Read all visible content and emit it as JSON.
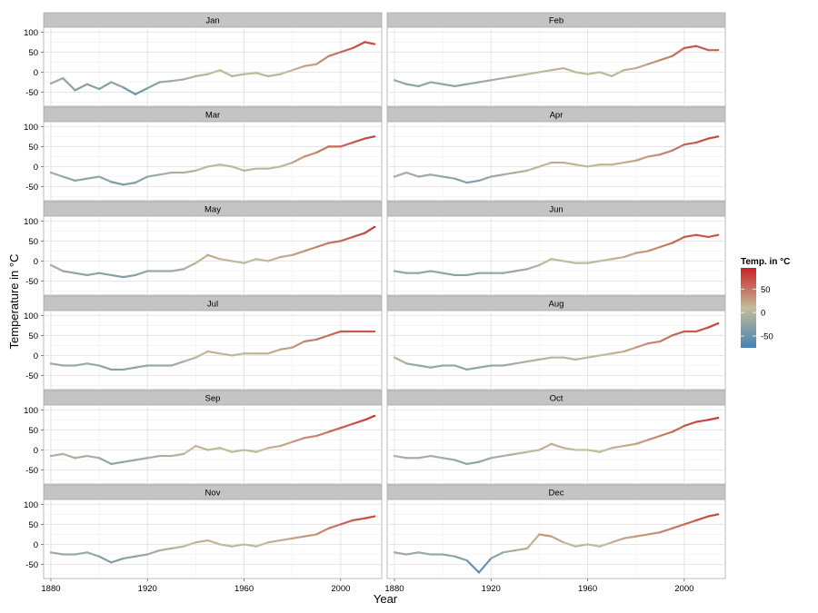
{
  "chart_data": {
    "type": "line",
    "xlabel": "Year",
    "ylabel": "Temperature in °C",
    "xlim": [
      1877,
      2017
    ],
    "ylim": [
      -85,
      112
    ],
    "x_ticks": [
      1880,
      1920,
      1960,
      2000
    ],
    "y_ticks": [
      -50,
      0,
      50,
      100
    ],
    "grid": true,
    "layout": "facet-wrap 6 rows x 2 cols",
    "legend": {
      "title": "Temp. in °C",
      "position": "right",
      "ticks": [
        50,
        0,
        -50
      ],
      "range": [
        -75,
        95
      ],
      "colors": [
        "#4682b4",
        "#c2bd9a",
        "#cb2027"
      ]
    },
    "facets": [
      {
        "label": "Jan",
        "x": [
          1880,
          1885,
          1890,
          1895,
          1900,
          1905,
          1910,
          1915,
          1920,
          1925,
          1930,
          1935,
          1940,
          1945,
          1950,
          1955,
          1960,
          1965,
          1970,
          1975,
          1980,
          1985,
          1990,
          1995,
          2000,
          2005,
          2010,
          2014
        ],
        "values": [
          -28,
          -15,
          -45,
          -30,
          -42,
          -25,
          -38,
          -55,
          -40,
          -25,
          -22,
          -18,
          -10,
          -5,
          5,
          -10,
          -5,
          -2,
          -10,
          -5,
          5,
          15,
          20,
          40,
          50,
          60,
          75,
          70
        ]
      },
      {
        "label": "Feb",
        "x": [
          1880,
          1885,
          1890,
          1895,
          1900,
          1905,
          1910,
          1915,
          1920,
          1925,
          1930,
          1935,
          1940,
          1945,
          1950,
          1955,
          1960,
          1965,
          1970,
          1975,
          1980,
          1985,
          1990,
          1995,
          2000,
          2005,
          2010,
          2014
        ],
        "values": [
          -20,
          -30,
          -35,
          -25,
          -30,
          -35,
          -30,
          -25,
          -20,
          -15,
          -10,
          -5,
          0,
          5,
          10,
          0,
          -5,
          0,
          -10,
          5,
          10,
          20,
          30,
          40,
          60,
          65,
          55,
          55
        ]
      },
      {
        "label": "Mar",
        "x": [
          1880,
          1885,
          1890,
          1895,
          1900,
          1905,
          1910,
          1915,
          1920,
          1925,
          1930,
          1935,
          1940,
          1945,
          1950,
          1955,
          1960,
          1965,
          1970,
          1975,
          1980,
          1985,
          1990,
          1995,
          2000,
          2005,
          2010,
          2014
        ],
        "values": [
          -15,
          -25,
          -35,
          -30,
          -25,
          -38,
          -45,
          -40,
          -25,
          -20,
          -15,
          -15,
          -10,
          0,
          5,
          0,
          -10,
          -5,
          -5,
          0,
          10,
          25,
          35,
          50,
          50,
          60,
          70,
          75
        ]
      },
      {
        "label": "Apr",
        "x": [
          1880,
          1885,
          1890,
          1895,
          1900,
          1905,
          1910,
          1915,
          1920,
          1925,
          1930,
          1935,
          1940,
          1945,
          1950,
          1955,
          1960,
          1965,
          1970,
          1975,
          1980,
          1985,
          1990,
          1995,
          2000,
          2005,
          2010,
          2014
        ],
        "values": [
          -25,
          -15,
          -25,
          -20,
          -25,
          -30,
          -40,
          -35,
          -25,
          -20,
          -15,
          -10,
          0,
          10,
          10,
          5,
          0,
          5,
          5,
          10,
          15,
          25,
          30,
          40,
          55,
          60,
          70,
          75
        ]
      },
      {
        "label": "May",
        "x": [
          1880,
          1885,
          1890,
          1895,
          1900,
          1905,
          1910,
          1915,
          1920,
          1925,
          1930,
          1935,
          1940,
          1945,
          1950,
          1955,
          1960,
          1965,
          1970,
          1975,
          1980,
          1985,
          1990,
          1995,
          2000,
          2005,
          2010,
          2014
        ],
        "values": [
          -10,
          -25,
          -30,
          -35,
          -30,
          -35,
          -40,
          -35,
          -25,
          -25,
          -25,
          -20,
          -5,
          15,
          5,
          0,
          -5,
          5,
          0,
          10,
          15,
          25,
          35,
          45,
          50,
          60,
          70,
          85
        ]
      },
      {
        "label": "Jun",
        "x": [
          1880,
          1885,
          1890,
          1895,
          1900,
          1905,
          1910,
          1915,
          1920,
          1925,
          1930,
          1935,
          1940,
          1945,
          1950,
          1955,
          1960,
          1965,
          1970,
          1975,
          1980,
          1985,
          1990,
          1995,
          2000,
          2005,
          2010,
          2014
        ],
        "values": [
          -25,
          -30,
          -30,
          -25,
          -30,
          -35,
          -35,
          -30,
          -30,
          -30,
          -25,
          -20,
          -10,
          5,
          0,
          -5,
          -5,
          0,
          5,
          10,
          20,
          25,
          35,
          45,
          60,
          65,
          60,
          65
        ]
      },
      {
        "label": "Jul",
        "x": [
          1880,
          1885,
          1890,
          1895,
          1900,
          1905,
          1910,
          1915,
          1920,
          1925,
          1930,
          1935,
          1940,
          1945,
          1950,
          1955,
          1960,
          1965,
          1970,
          1975,
          1980,
          1985,
          1990,
          1995,
          2000,
          2005,
          2010,
          2014
        ],
        "values": [
          -20,
          -25,
          -25,
          -20,
          -25,
          -35,
          -35,
          -30,
          -25,
          -25,
          -25,
          -15,
          -5,
          10,
          5,
          0,
          5,
          5,
          5,
          15,
          20,
          35,
          40,
          50,
          60,
          60,
          60,
          60
        ]
      },
      {
        "label": "Aug",
        "x": [
          1880,
          1885,
          1890,
          1895,
          1900,
          1905,
          1910,
          1915,
          1920,
          1925,
          1930,
          1935,
          1940,
          1945,
          1950,
          1955,
          1960,
          1965,
          1970,
          1975,
          1980,
          1985,
          1990,
          1995,
          2000,
          2005,
          2010,
          2014
        ],
        "values": [
          -5,
          -20,
          -25,
          -30,
          -25,
          -25,
          -35,
          -30,
          -25,
          -25,
          -20,
          -15,
          -10,
          -5,
          -5,
          -10,
          -5,
          0,
          5,
          10,
          20,
          30,
          35,
          50,
          60,
          60,
          70,
          80
        ]
      },
      {
        "label": "Sep",
        "x": [
          1880,
          1885,
          1890,
          1895,
          1900,
          1905,
          1910,
          1915,
          1920,
          1925,
          1930,
          1935,
          1940,
          1945,
          1950,
          1955,
          1960,
          1965,
          1970,
          1975,
          1980,
          1985,
          1990,
          1995,
          2000,
          2005,
          2010,
          2014
        ],
        "values": [
          -15,
          -10,
          -20,
          -15,
          -20,
          -35,
          -30,
          -25,
          -20,
          -15,
          -15,
          -10,
          10,
          0,
          5,
          -5,
          0,
          -5,
          5,
          10,
          20,
          30,
          35,
          45,
          55,
          65,
          75,
          85
        ]
      },
      {
        "label": "Oct",
        "x": [
          1880,
          1885,
          1890,
          1895,
          1900,
          1905,
          1910,
          1915,
          1920,
          1925,
          1930,
          1935,
          1940,
          1945,
          1950,
          1955,
          1960,
          1965,
          1970,
          1975,
          1980,
          1985,
          1990,
          1995,
          2000,
          2005,
          2010,
          2014
        ],
        "values": [
          -15,
          -20,
          -20,
          -15,
          -20,
          -25,
          -35,
          -30,
          -20,
          -15,
          -10,
          -5,
          0,
          15,
          5,
          0,
          0,
          -5,
          5,
          10,
          15,
          25,
          35,
          45,
          60,
          70,
          75,
          80
        ]
      },
      {
        "label": "Nov",
        "x": [
          1880,
          1885,
          1890,
          1895,
          1900,
          1905,
          1910,
          1915,
          1920,
          1925,
          1930,
          1935,
          1940,
          1945,
          1950,
          1955,
          1960,
          1965,
          1970,
          1975,
          1980,
          1985,
          1990,
          1995,
          2000,
          2005,
          2010,
          2014
        ],
        "values": [
          -20,
          -25,
          -25,
          -20,
          -30,
          -45,
          -35,
          -30,
          -25,
          -15,
          -10,
          -5,
          5,
          10,
          0,
          -5,
          0,
          -5,
          5,
          10,
          15,
          20,
          25,
          40,
          50,
          60,
          65,
          70
        ]
      },
      {
        "label": "Dec",
        "x": [
          1880,
          1885,
          1890,
          1895,
          1900,
          1905,
          1910,
          1915,
          1920,
          1925,
          1930,
          1935,
          1940,
          1945,
          1950,
          1955,
          1960,
          1965,
          1970,
          1975,
          1980,
          1985,
          1990,
          1995,
          2000,
          2005,
          2010,
          2014
        ],
        "values": [
          -20,
          -25,
          -20,
          -25,
          -25,
          -30,
          -40,
          -70,
          -35,
          -20,
          -15,
          -10,
          25,
          20,
          5,
          -5,
          0,
          -5,
          5,
          15,
          20,
          25,
          30,
          40,
          50,
          60,
          70,
          75
        ]
      }
    ]
  }
}
